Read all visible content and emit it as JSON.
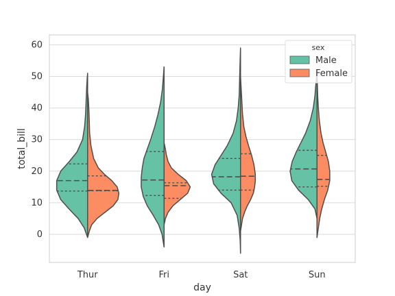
{
  "chart_data": {
    "type": "violin",
    "split": true,
    "inner": "quartile",
    "xlabel": "day",
    "ylabel": "total_bill",
    "categories": [
      "Thur",
      "Fri",
      "Sat",
      "Sun"
    ],
    "yticks": [
      0,
      10,
      20,
      30,
      40,
      50,
      60
    ],
    "ylim": [
      -9,
      63
    ],
    "grid": "horizontal",
    "legend": {
      "title": "sex",
      "placement": "top-right",
      "entries": [
        {
          "name": "Male",
          "color": "#66c2a5"
        },
        {
          "name": "Female",
          "color": "#fc8d62"
        }
      ]
    },
    "series": [
      {
        "name": "Male",
        "color": "#66c2a5",
        "violins": [
          {
            "min": -1,
            "max": 51,
            "q1": 13.7,
            "median": 17.0,
            "q3": 22.3,
            "profile": [
              [
                -1,
                0.0
              ],
              [
                2,
                0.1
              ],
              [
                5,
                0.28
              ],
              [
                8,
                0.55
              ],
              [
                11,
                0.8
              ],
              [
                14,
                0.92
              ],
              [
                17,
                0.92
              ],
              [
                20,
                0.8
              ],
              [
                23,
                0.55
              ],
              [
                26,
                0.32
              ],
              [
                30,
                0.15
              ],
              [
                34,
                0.09
              ],
              [
                38,
                0.06
              ],
              [
                42,
                0.045
              ],
              [
                46,
                0.03
              ],
              [
                49,
                0.015
              ],
              [
                51,
                0.0
              ]
            ]
          },
          {
            "min": -4,
            "max": 53,
            "q1": 12.3,
            "median": 17.2,
            "q3": 26.2,
            "profile": [
              [
                -4,
                0.0
              ],
              [
                0,
                0.06
              ],
              [
                3,
                0.16
              ],
              [
                6,
                0.32
              ],
              [
                9,
                0.5
              ],
              [
                12,
                0.62
              ],
              [
                15,
                0.68
              ],
              [
                18,
                0.68
              ],
              [
                21,
                0.65
              ],
              [
                24,
                0.6
              ],
              [
                27,
                0.5
              ],
              [
                30,
                0.4
              ],
              [
                34,
                0.28
              ],
              [
                38,
                0.18
              ],
              [
                42,
                0.1
              ],
              [
                46,
                0.05
              ],
              [
                50,
                0.02
              ],
              [
                53,
                0.0
              ]
            ]
          },
          {
            "min": -6,
            "max": 59,
            "q1": 14.0,
            "median": 18.2,
            "q3": 24.0,
            "profile": [
              [
                -6,
                0.0
              ],
              [
                -2,
                0.01
              ],
              [
                2,
                0.04
              ],
              [
                6,
                0.1
              ],
              [
                10,
                0.28
              ],
              [
                13,
                0.58
              ],
              [
                16,
                0.8
              ],
              [
                19,
                0.86
              ],
              [
                22,
                0.76
              ],
              [
                25,
                0.58
              ],
              [
                28,
                0.4
              ],
              [
                32,
                0.22
              ],
              [
                36,
                0.12
              ],
              [
                40,
                0.07
              ],
              [
                44,
                0.04
              ],
              [
                48,
                0.03
              ],
              [
                52,
                0.02
              ],
              [
                56,
                0.01
              ],
              [
                59,
                0.0
              ]
            ]
          },
          {
            "min": 5,
            "max": 51,
            "q1": 15.0,
            "median": 20.7,
            "q3": 26.6,
            "profile": [
              [
                5,
                0.0
              ],
              [
                8,
                0.06
              ],
              [
                11,
                0.26
              ],
              [
                14,
                0.55
              ],
              [
                17,
                0.75
              ],
              [
                20,
                0.8
              ],
              [
                23,
                0.74
              ],
              [
                26,
                0.62
              ],
              [
                29,
                0.48
              ],
              [
                32,
                0.34
              ],
              [
                36,
                0.2
              ],
              [
                40,
                0.11
              ],
              [
                44,
                0.06
              ],
              [
                48,
                0.03
              ],
              [
                51,
                0.0
              ]
            ]
          }
        ]
      },
      {
        "name": "Female",
        "color": "#fc8d62",
        "violins": [
          {
            "min": -1,
            "max": 45,
            "q1": 13.8,
            "median": 13.9,
            "q3": 18.5,
            "profile": [
              [
                -1,
                0.0
              ],
              [
                1,
                0.05
              ],
              [
                3,
                0.12
              ],
              [
                5,
                0.28
              ],
              [
                7,
                0.52
              ],
              [
                9,
                0.76
              ],
              [
                11,
                0.9
              ],
              [
                13,
                0.93
              ],
              [
                15,
                0.88
              ],
              [
                17,
                0.72
              ],
              [
                19,
                0.5
              ],
              [
                21,
                0.32
              ],
              [
                24,
                0.18
              ],
              [
                28,
                0.1
              ],
              [
                32,
                0.06
              ],
              [
                36,
                0.05
              ],
              [
                40,
                0.035
              ],
              [
                43,
                0.02
              ],
              [
                45,
                0.0
              ]
            ]
          },
          {
            "min": 3,
            "max": 29,
            "q1": 11.4,
            "median": 15.4,
            "q3": 16.3,
            "profile": [
              [
                3,
                0.0
              ],
              [
                5,
                0.04
              ],
              [
                7,
                0.12
              ],
              [
                9,
                0.26
              ],
              [
                11,
                0.48
              ],
              [
                13,
                0.7
              ],
              [
                15,
                0.78
              ],
              [
                17,
                0.66
              ],
              [
                19,
                0.42
              ],
              [
                21,
                0.22
              ],
              [
                23,
                0.12
              ],
              [
                25,
                0.07
              ],
              [
                27,
                0.04
              ],
              [
                29,
                0.0
              ]
            ]
          },
          {
            "min": 1,
            "max": 50,
            "q1": 14.0,
            "median": 18.4,
            "q3": 25.5,
            "profile": [
              [
                1,
                0.0
              ],
              [
                3,
                0.03
              ],
              [
                5,
                0.06
              ],
              [
                7,
                0.12
              ],
              [
                9,
                0.2
              ],
              [
                11,
                0.3
              ],
              [
                13,
                0.38
              ],
              [
                15,
                0.42
              ],
              [
                17,
                0.44
              ],
              [
                19,
                0.44
              ],
              [
                22,
                0.4
              ],
              [
                25,
                0.33
              ],
              [
                28,
                0.24
              ],
              [
                31,
                0.16
              ],
              [
                34,
                0.1
              ],
              [
                38,
                0.06
              ],
              [
                42,
                0.04
              ],
              [
                46,
                0.02
              ],
              [
                50,
                0.0
              ]
            ]
          },
          {
            "min": -1,
            "max": 52,
            "q1": 15.2,
            "median": 17.4,
            "q3": 25.0,
            "profile": [
              [
                -1,
                0.0
              ],
              [
                2,
                0.04
              ],
              [
                5,
                0.08
              ],
              [
                8,
                0.14
              ],
              [
                11,
                0.22
              ],
              [
                14,
                0.32
              ],
              [
                17,
                0.38
              ],
              [
                20,
                0.38
              ],
              [
                23,
                0.34
              ],
              [
                26,
                0.26
              ],
              [
                29,
                0.18
              ],
              [
                32,
                0.12
              ],
              [
                36,
                0.07
              ],
              [
                40,
                0.04
              ],
              [
                44,
                0.02
              ],
              [
                48,
                0.01
              ],
              [
                52,
                0.0
              ]
            ]
          }
        ]
      }
    ]
  }
}
